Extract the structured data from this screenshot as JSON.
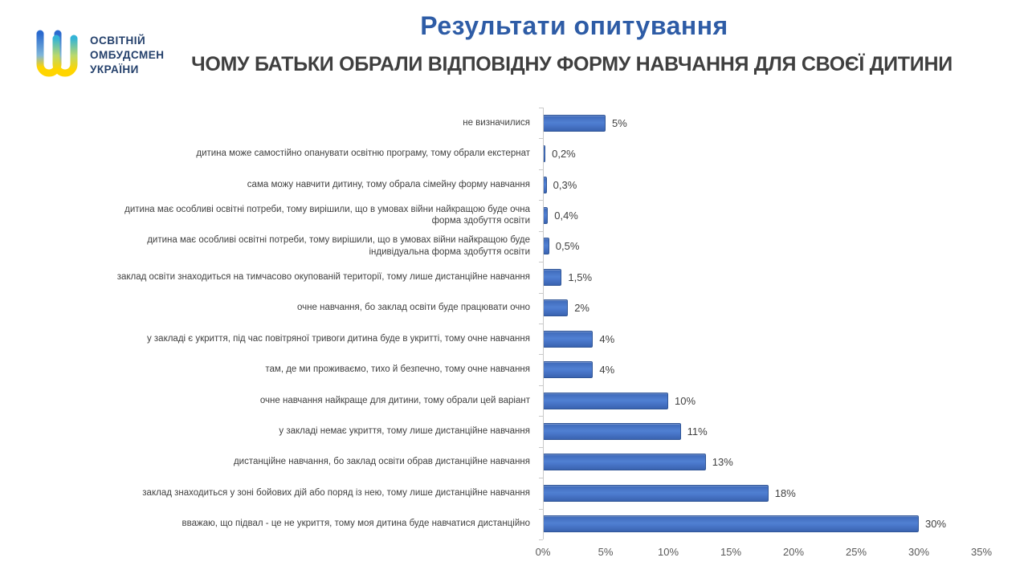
{
  "header": {
    "logo": {
      "line1": "ОСВІТНІЙ",
      "line2": "ОМБУДСМЕН",
      "line3": "УКРАЇНИ"
    },
    "title": "Результати опитування",
    "subtitle": "ЧОМУ БАТЬКИ ОБРАЛИ ВІДПОВІДНУ ФОРМУ НАВЧАННЯ ДЛЯ СВОЄЇ ДИТИНИ"
  },
  "colors": {
    "title_blue": "#2e5ca6",
    "subtitle_gray": "#3f3f3f",
    "bar_fill": "#4472c4",
    "bar_border": "#2f5597",
    "category_label_gray": "#404040",
    "axis_label_gray": "#595959",
    "logo_blue": "#2a6acf",
    "logo_yellow": "#ffd500"
  },
  "chart_data": {
    "type": "bar",
    "orientation": "horizontal",
    "title": "ЧОМУ БАТЬКИ ОБРАЛИ ВІДПОВІДНУ ФОРМУ НАВЧАННЯ ДЛЯ СВОЄЇ ДИТИНИ",
    "categories": [
      "не визначилися",
      "дитина може самостійно опанувати освітню програму, тому обрали екстернат",
      "сама можу навчити дитину, тому обрала сімейну форму навчання",
      "дитина має особливі освітні потреби, тому вирішили, що в умовах війни найкращою буде очна форма здобуття освіти",
      "дитина має особливі освітні потреби, тому вирішили, що в умовах війни найкращою буде індивідуальна форма здобуття освіти",
      "заклад освіти знаходиться на тимчасово окупованій території, тому лише дистанційне навчання",
      "очне навчання, бо заклад освіти буде працювати очно",
      "у закладі є укриття, під час повітряної тривоги дитина буде в укритті, тому очне навчання",
      "там, де ми проживаємо, тихо й безпечно, тому очне навчання",
      "очне навчання найкраще для дитини, тому обрали цей варіант",
      "у закладі немає укриття, тому лише дистанційне навчання",
      "дистанційне навчання, бо заклад освіти обрав дистанційне навчання",
      "заклад знаходиться у зоні бойових дій або поряд із нею, тому лише дистанційне навчання",
      "вважаю, що підвал - це не укриття, тому моя дитина буде навчатися дистанційно"
    ],
    "values": [
      5,
      0.2,
      0.3,
      0.4,
      0.5,
      1.5,
      2,
      4,
      4,
      10,
      11,
      13,
      18,
      30
    ],
    "value_labels": [
      "5%",
      "0,2%",
      "0,3%",
      "0,4%",
      "0,5%",
      "1,5%",
      "2%",
      "4%",
      "4%",
      "10%",
      "11%",
      "13%",
      "18%",
      "30%"
    ],
    "x_ticks": [
      "0%",
      "5%",
      "10%",
      "15%",
      "20%",
      "25%",
      "30%",
      "35%"
    ],
    "xlim": [
      0,
      35
    ],
    "grid": false,
    "legend": false
  }
}
